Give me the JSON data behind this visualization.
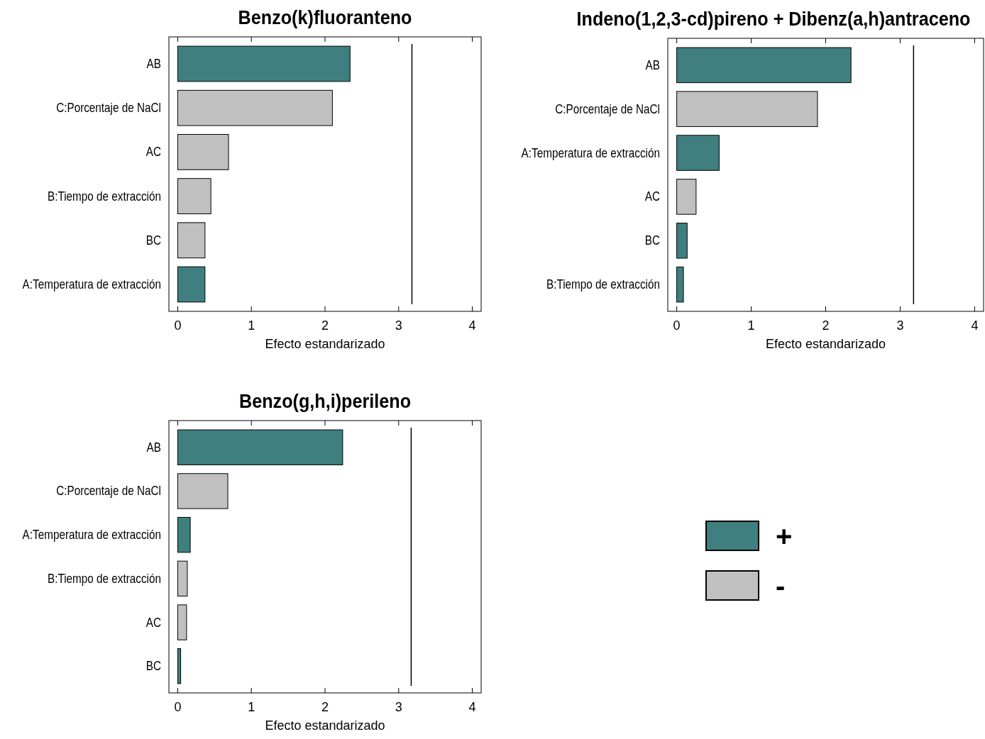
{
  "chart_data": [
    {
      "type": "bar",
      "title": "Benzo(k)fluoranteno",
      "xlabel": "Efecto estandarizado",
      "orientation": "horizontal",
      "categories": [
        "AB",
        "C:Porcentaje de NaCl",
        "AC",
        "B:Tiempo de extracción",
        "BC",
        "A:Temperatura de extracción"
      ],
      "xlim": [
        -0.12,
        4.12
      ],
      "xticks": [
        0,
        1,
        2,
        3,
        4
      ],
      "ref_lines": [
        {
          "axis": "x",
          "value": 3.18,
          "color": "#000000"
        }
      ],
      "series": [
        {
          "color": "#3f7f7f",
          "values": [
            2.34,
            null,
            null,
            null,
            null,
            0.37
          ]
        },
        {
          "color": "#c0c0c0",
          "values": [
            null,
            2.1,
            0.69,
            0.45,
            0.37,
            null
          ]
        }
      ]
    },
    {
      "type": "bar",
      "title": "Indeno(1,2,3-cd)pireno + Dibenz(a,h)antraceno",
      "xlabel": "Efecto estandarizado",
      "orientation": "horizontal",
      "categories": [
        "AB",
        "C:Porcentaje de NaCl",
        "A:Temperatura de extracción",
        "AC",
        "BC",
        "B:Tiempo de extracción"
      ],
      "xlim": [
        -0.12,
        4.12
      ],
      "xticks": [
        0,
        1,
        2,
        3,
        4
      ],
      "ref_lines": [
        {
          "axis": "x",
          "value": 3.18,
          "color": "#000000"
        }
      ],
      "series": [
        {
          "color": "#3f7f7f",
          "values": [
            2.34,
            null,
            0.57,
            null,
            0.14,
            0.09
          ]
        },
        {
          "color": "#c0c0c0",
          "values": [
            null,
            1.89,
            null,
            0.26,
            null,
            null
          ]
        }
      ]
    },
    {
      "type": "bar",
      "title": "Benzo(g,h,i)perileno",
      "xlabel": "Efecto estandarizado",
      "orientation": "horizontal",
      "legend": "right",
      "categories": [
        "AB",
        "C:Porcentaje de NaCl",
        "A:Temperatura de extracción",
        "B:Tiempo de extracción",
        "AC",
        "BC"
      ],
      "xlim": [
        -0.12,
        4.12
      ],
      "xticks": [
        0,
        1,
        2,
        3,
        4
      ],
      "ref_lines": [
        {
          "axis": "x",
          "value": 3.17,
          "color": "#000000"
        }
      ],
      "series": [
        {
          "name": "+",
          "color": "#3f7f7f",
          "values": [
            2.24,
            null,
            0.17,
            null,
            null,
            0.04
          ]
        },
        {
          "name": "-",
          "color": "#c0c0c0",
          "values": [
            null,
            0.68,
            null,
            0.13,
            0.12,
            null
          ]
        }
      ]
    }
  ]
}
